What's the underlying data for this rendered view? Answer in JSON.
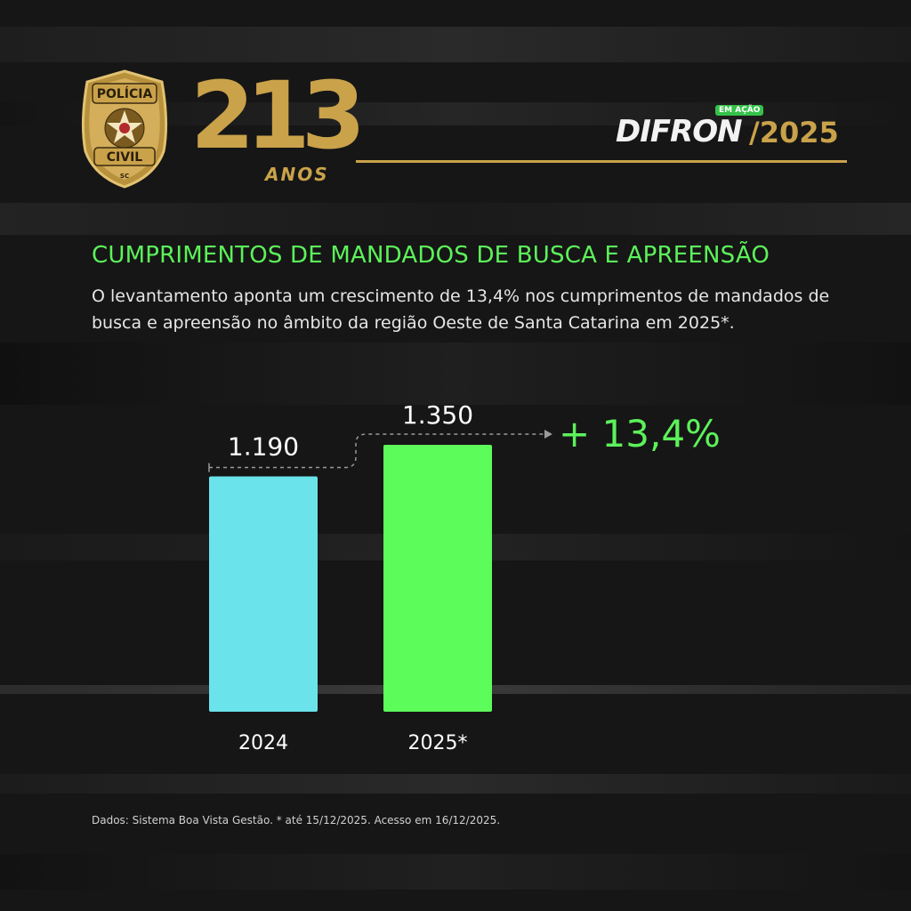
{
  "header": {
    "badge_top_text": "POLÍCIA",
    "badge_bottom_text": "CIVIL",
    "badge_state": "SC",
    "anniversary_number": "213",
    "anniversary_word": "ANOS",
    "brand_name": "DIFRON",
    "brand_tag": "EM AÇÃO",
    "brand_year": "/2025"
  },
  "content": {
    "title": "CUMPRIMENTOS DE MANDADOS DE BUSCA E APREENSÃO",
    "description": "O levantamento aponta um crescimento de 13,4% nos cumprimentos de mandados de busca e apreensão no âmbito da região Oeste de Santa Catarina em 2025*."
  },
  "chart_data": {
    "type": "bar",
    "categories": [
      "2024",
      "2025*"
    ],
    "values": [
      1190,
      1350
    ],
    "value_labels": [
      "1.190",
      "1.350"
    ],
    "bar_colors": [
      "#6ae4ea",
      "#5cfc5a"
    ],
    "growth_label": "+ 13,4%",
    "ylim": [
      0,
      1350
    ],
    "grid": false,
    "title": "",
    "xlabel": "",
    "ylabel": ""
  },
  "footer": {
    "source_note": "Dados: Sistema Boa Vista Gestão. * até 15/12/2025. Acesso em 16/12/2025."
  },
  "colors": {
    "gold": "#c9a24a",
    "accent_green": "#5cf25a",
    "background": "#161616"
  }
}
